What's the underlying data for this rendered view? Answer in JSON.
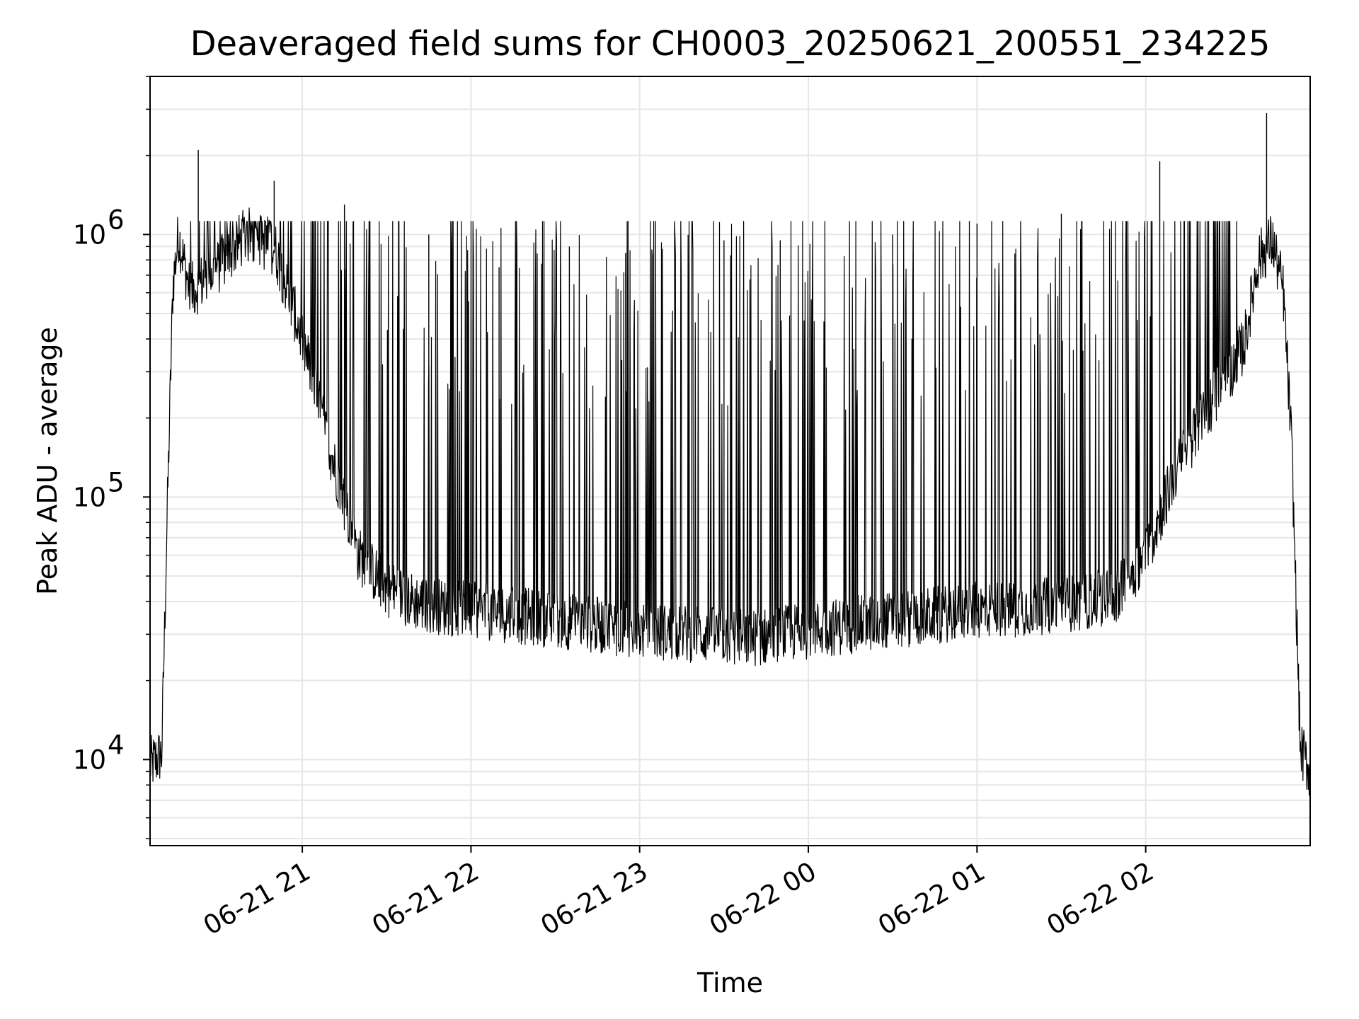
{
  "chart_data": {
    "type": "line",
    "title": "Deaveraged field sums for CH0003_20250621_200551_234225",
    "xlabel": "Time",
    "ylabel": "Peak ADU - average",
    "y_scale": "log",
    "ylim": [
      4700,
      4000000
    ],
    "xlim": [
      "2025-06-21 20:05:51",
      "2025-06-22 02:58:30"
    ],
    "grid": true,
    "line_color": "#000000",
    "grid_color": "#e6e6e6",
    "x_ticks": [
      {
        "value": "2025-06-21 21:00",
        "label": "06-21 21"
      },
      {
        "value": "2025-06-21 22:00",
        "label": "06-21 22"
      },
      {
        "value": "2025-06-21 23:00",
        "label": "06-21 23"
      },
      {
        "value": "2025-06-22 00:00",
        "label": "06-22 00"
      },
      {
        "value": "2025-06-22 01:00",
        "label": "06-22 01"
      },
      {
        "value": "2025-06-22 02:00",
        "label": "06-22 02"
      }
    ],
    "y_ticks": [
      {
        "value": 10000,
        "base": "10",
        "exp": "4"
      },
      {
        "value": 100000,
        "base": "10",
        "exp": "5"
      },
      {
        "value": 1000000,
        "base": "10",
        "exp": "6"
      }
    ],
    "series": [
      {
        "x": [
          "2025-06-21 20:05:51",
          "2025-06-21 20:10",
          "2025-06-21 20:12",
          "2025-06-21 20:14",
          "2025-06-21 20:16",
          "2025-06-21 20:20",
          "2025-06-21 20:30",
          "2025-06-21 20:40",
          "2025-06-21 20:50",
          "2025-06-21 21:00",
          "2025-06-21 21:10",
          "2025-06-21 21:20",
          "2025-06-21 21:30",
          "2025-06-21 21:40",
          "2025-06-21 21:50",
          "2025-06-21 22:00",
          "2025-06-21 22:20",
          "2025-06-21 22:40",
          "2025-06-21 23:00",
          "2025-06-21 23:20",
          "2025-06-21 23:40",
          "2025-06-22 00:00",
          "2025-06-22 00:20",
          "2025-06-22 00:40",
          "2025-06-22 01:00",
          "2025-06-22 01:20",
          "2025-06-22 01:40",
          "2025-06-22 01:50",
          "2025-06-22 02:00",
          "2025-06-22 02:10",
          "2025-06-22 02:20",
          "2025-06-22 02:30",
          "2025-06-22 02:35",
          "2025-06-22 02:40",
          "2025-06-22 02:45",
          "2025-06-22 02:49",
          "2025-06-22 02:52",
          "2025-06-22 02:55",
          "2025-06-22 02:58:30"
        ],
        "y": [
          9500,
          10500,
          90000,
          650000,
          1000000,
          600000,
          750000,
          1000000,
          900000,
          400000,
          150000,
          60000,
          45000,
          40000,
          38000,
          37000,
          35000,
          33000,
          31000,
          30000,
          29000,
          31000,
          33000,
          35000,
          37000,
          38000,
          40000,
          43000,
          60000,
          120000,
          200000,
          300000,
          380000,
          800000,
          950000,
          600000,
          150000,
          11000,
          9000
        ]
      }
    ],
    "spikes": [
      {
        "x": "2025-06-21 20:23",
        "y": 2100000
      },
      {
        "x": "2025-06-21 20:50",
        "y": 1600000
      },
      {
        "x": "2025-06-21 21:15",
        "y": 1300000
      },
      {
        "x": "2025-06-21 21:45",
        "y": 1000000
      },
      {
        "x": "2025-06-21 22:10",
        "y": 750000
      },
      {
        "x": "2025-06-21 22:35",
        "y": 900000
      },
      {
        "x": "2025-06-21 22:55",
        "y": 850000
      },
      {
        "x": "2025-06-21 23:30",
        "y": 950000
      },
      {
        "x": "2025-06-21 23:50",
        "y": 950000
      },
      {
        "x": "2025-06-22 00:30",
        "y": 1000000
      },
      {
        "x": "2025-06-22 01:00",
        "y": 1100000
      },
      {
        "x": "2025-06-22 01:30",
        "y": 1200000
      },
      {
        "x": "2025-06-22 02:05",
        "y": 1900000
      },
      {
        "x": "2025-06-22 02:43",
        "y": 2900000
      }
    ]
  }
}
